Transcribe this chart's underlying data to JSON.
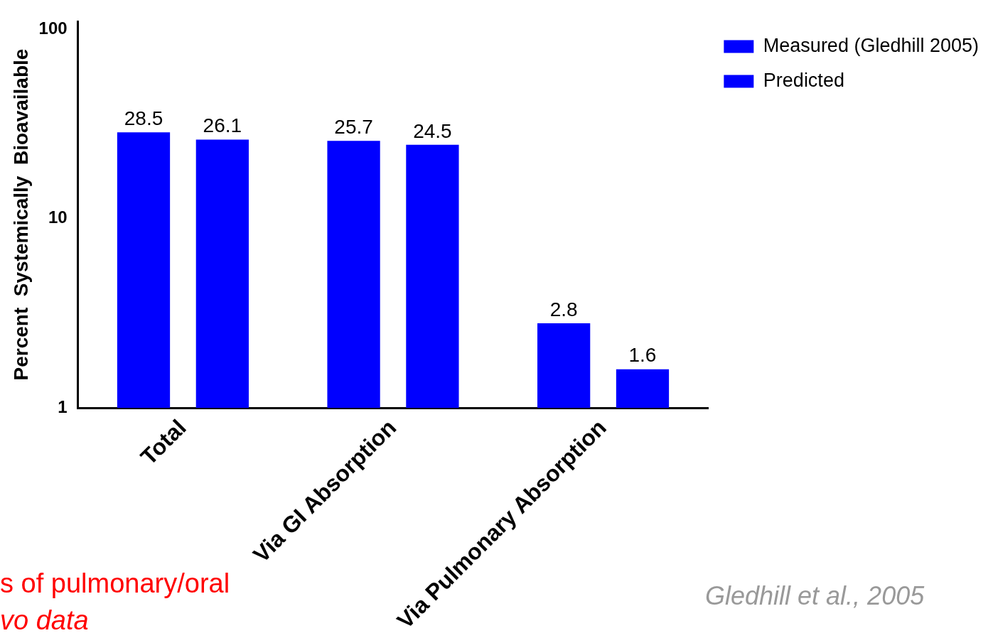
{
  "chart_data": {
    "type": "bar",
    "ylabel": "Percent  Systemically  Bioavailable",
    "categories": [
      "Total",
      "Via GI Absorption",
      "Via Pulmonary Absorption"
    ],
    "series": [
      {
        "name": "Measured (Gledhill 2005)",
        "color": "#0000ff",
        "values": [
          28.5,
          25.7,
          2.8
        ]
      },
      {
        "name": "Predicted",
        "color": "#0000ff",
        "values": [
          26.1,
          24.5,
          1.6
        ]
      }
    ],
    "log": true,
    "ylim": [
      1,
      110
    ],
    "yticks": [
      1,
      10,
      100
    ],
    "grid": false,
    "legend": "top right",
    "data_labels": true,
    "annotations": [
      "s of pulmonary/oral",
      "vo data",
      "Gledhill et al., 2005"
    ]
  }
}
